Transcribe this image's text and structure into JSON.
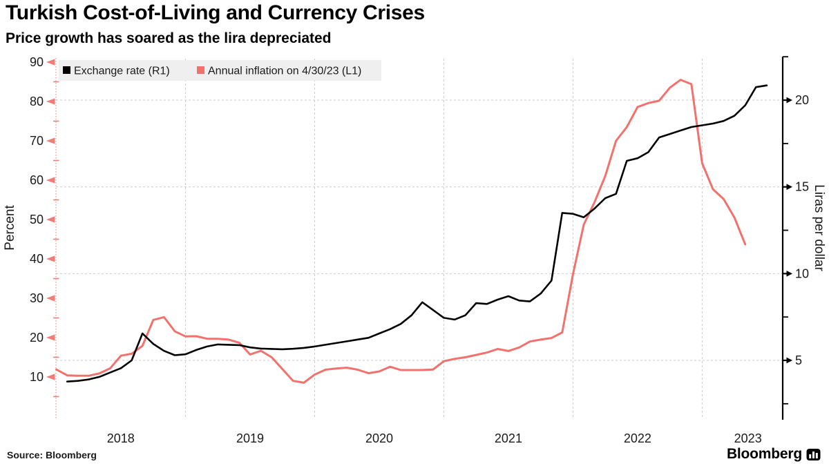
{
  "header": {
    "title": "Turkish Cost-of-Living and Currency Crises",
    "subtitle": "Price growth has soared as the lira depreciated"
  },
  "legend": [
    {
      "label": "Exchange rate (R1)",
      "color": "#000000",
      "icon": "black-square-swatch"
    },
    {
      "label": "Annual inflation on 4/30/23 (L1)",
      "color": "#f2716d",
      "icon": "red-square-swatch"
    }
  ],
  "footer": {
    "source": "Source: Bloomberg",
    "brand": "Bloomberg",
    "brand_icon": "bloomberg-bug-icon"
  },
  "colors": {
    "inflation_line": "#f2716d",
    "exchange_line": "#000000",
    "left_axis_marks": "#ef7d78",
    "left_axis_line": "#e89f9b",
    "gridline": "#c9c9c9",
    "legend_bg": "#efefef",
    "tick_text": "#1a1a1a"
  },
  "chart_data": {
    "type": "line",
    "title": "Turkish Cost-of-Living and Currency Crises",
    "x_axis": {
      "unit": "months",
      "year_labels": [
        "2018",
        "2019",
        "2020",
        "2021",
        "2022",
        "2023"
      ],
      "year_start_slots": [
        1,
        13,
        25,
        37,
        49,
        61
      ],
      "gridline_slots": [
        13,
        25,
        37,
        49,
        61
      ],
      "slots_total": 68
    },
    "left_axis": {
      "label": "Percent",
      "ticks": [
        10,
        20,
        30,
        40,
        50,
        60,
        70,
        80,
        90
      ],
      "range": [
        0,
        91
      ],
      "grid": false
    },
    "right_axis": {
      "label": "Liras per dollar",
      "ticks": [
        5,
        10,
        15,
        20
      ],
      "range": [
        1.7,
        22.4
      ],
      "grid": true
    },
    "legend_position": "top-left",
    "series": [
      {
        "name": "Annual inflation on 4/30/23 (L1)",
        "axis": "left",
        "color": "#f2716d",
        "width": 3,
        "start_slot": 1,
        "values": [
          11.9,
          10.4,
          10.3,
          10.3,
          10.9,
          12.2,
          15.4,
          15.9,
          17.9,
          24.5,
          25.2,
          21.6,
          20.3,
          20.35,
          19.7,
          19.7,
          19.5,
          18.7,
          15.7,
          16.65,
          15.0,
          12.0,
          9.0,
          8.55,
          10.6,
          11.85,
          12.15,
          12.35,
          11.85,
          10.95,
          11.4,
          12.6,
          11.75,
          11.75,
          11.75,
          11.9,
          14.0,
          14.6,
          15.0,
          15.6,
          16.2,
          17.1,
          16.6,
          17.5,
          19.0,
          19.5,
          19.9,
          21.3,
          36.1,
          48.7,
          54.4,
          61.1,
          70.0,
          73.5,
          78.6,
          79.6,
          80.2,
          83.5,
          85.5,
          84.4,
          64.3,
          57.7,
          55.2,
          50.5,
          43.7
        ]
      },
      {
        "name": "Exchange rate (R1)",
        "axis": "right",
        "color": "#000000",
        "width": 2.6,
        "start_slot": 2,
        "values": [
          3.78,
          3.82,
          3.9,
          4.05,
          4.3,
          4.55,
          5.0,
          6.55,
          5.95,
          5.55,
          5.3,
          5.35,
          5.6,
          5.8,
          5.92,
          5.9,
          5.88,
          5.75,
          5.68,
          5.66,
          5.64,
          5.67,
          5.72,
          5.8,
          5.9,
          6.0,
          6.1,
          6.2,
          6.3,
          6.55,
          6.8,
          7.1,
          7.6,
          8.35,
          7.9,
          7.45,
          7.35,
          7.6,
          8.3,
          8.25,
          8.5,
          8.7,
          8.45,
          8.4,
          8.85,
          9.6,
          13.5,
          13.45,
          13.25,
          13.75,
          14.35,
          14.6,
          16.5,
          16.65,
          17.0,
          17.85,
          18.05,
          18.25,
          18.45,
          18.55,
          18.65,
          18.8,
          19.1,
          19.7,
          20.75,
          20.85
        ]
      }
    ]
  }
}
